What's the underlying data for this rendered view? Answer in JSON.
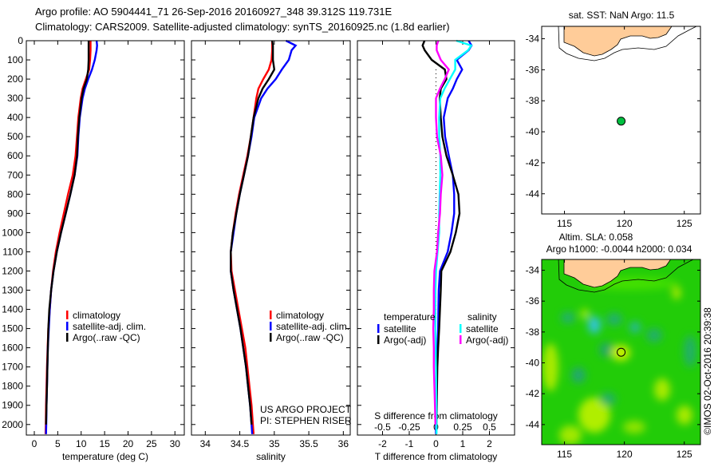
{
  "header": {
    "title_line1": "Argo profile: AO 5904441_71 26-Sep-2016 20160927_348 39.312S 119.731E",
    "title_line2": "Climatology: CARS2009. Satellite-adjusted climatology: synTS_20160925.nc (1.8d earlier)"
  },
  "credits": {
    "project": "US ARGO PROJECT",
    "pi": "PI: STEPHEN RISER",
    "timestamp": "©IMOS 02-Oct-2016 20:39:38"
  },
  "maps": {
    "sst_title": "sat. SST: NaN Argo: 11.5",
    "sla_title_line1": "Altim. SLA: 0.058",
    "sla_title_line2": "Argo h1000: -0.0044 h2000: 0.034",
    "lon_ticks": [
      "115",
      "120",
      "125"
    ],
    "lat_ticks": [
      "-34",
      "-36",
      "-38",
      "-40",
      "-42",
      "-44"
    ],
    "float_position": {
      "lon": 119.731,
      "lat": -39.312
    },
    "land_color": "#ffcc99",
    "float_color": "#00c040"
  },
  "chart_data": [
    {
      "type": "line",
      "id": "temperature",
      "xlabel": "temperature (deg C)",
      "ylabel": "",
      "xlim": [
        -1.7,
        32
      ],
      "ylim": [
        2055,
        0
      ],
      "xticks": [
        0,
        5,
        10,
        15,
        20,
        25,
        30
      ],
      "xtick_labels": [
        "0",
        "5",
        "10",
        "15",
        "20",
        "25",
        "30"
      ],
      "yticks": [
        0,
        100,
        200,
        300,
        400,
        500,
        600,
        700,
        800,
        900,
        1000,
        1100,
        1200,
        1300,
        1400,
        1500,
        1600,
        1700,
        1800,
        1900,
        2000
      ],
      "ytick_labels": [
        "0",
        "100",
        "200",
        "300",
        "400",
        "500",
        "600",
        "700",
        "800",
        "900",
        "1000",
        "1100",
        "1200",
        "1300",
        "1400",
        "1500",
        "1600",
        "1700",
        "1800",
        "1900",
        "2000"
      ],
      "legend_position": "center-left",
      "depth": [
        0,
        25,
        50,
        100,
        150,
        200,
        250,
        300,
        400,
        500,
        600,
        700,
        800,
        900,
        1000,
        1100,
        1200,
        1300,
        1400,
        1500,
        1600,
        1700,
        1800,
        1900,
        2000,
        2050
      ],
      "series": [
        {
          "name": "climatology",
          "color": "#ff0000",
          "values": [
            12.0,
            12.0,
            12.0,
            11.9,
            11.7,
            11.0,
            10.3,
            9.9,
            9.4,
            9.1,
            8.8,
            8.2,
            7.2,
            6.3,
            5.4,
            4.6,
            4.0,
            3.6,
            3.3,
            3.0,
            2.85,
            2.7,
            2.6,
            2.5,
            2.45,
            2.4
          ]
        },
        {
          "name": "satellite-adj. clim.",
          "color": "#0000ff",
          "values": [
            13.3,
            13.4,
            13.3,
            12.9,
            12.3,
            11.5,
            10.8,
            10.3,
            9.7,
            9.4,
            9.2,
            8.6,
            7.7,
            6.7,
            5.7,
            4.8,
            4.1,
            3.6,
            3.3,
            3.1,
            2.9,
            2.8,
            2.7,
            2.6,
            2.55,
            2.5
          ]
        },
        {
          "name": "Argo(..raw -QC)",
          "color": "#000000",
          "values": [
            11.6,
            11.6,
            11.6,
            11.6,
            11.5,
            11.2,
            10.5,
            10.1,
            9.6,
            9.3,
            9.1,
            8.6,
            7.7,
            6.7,
            5.7,
            4.8,
            4.1,
            3.6,
            3.2,
            3.0,
            2.9,
            2.8,
            2.7,
            2.6,
            2.5,
            null
          ]
        }
      ]
    },
    {
      "type": "line",
      "id": "salinity",
      "xlabel": "salinity",
      "xlim": [
        33.8,
        36.1
      ],
      "ylim": [
        2055,
        0
      ],
      "xticks": [
        34,
        34.5,
        35,
        35.5,
        36
      ],
      "xtick_labels": [
        "34",
        "34.5",
        "35",
        "35.5",
        "36"
      ],
      "yticks": [
        0,
        100,
        200,
        300,
        400,
        500,
        600,
        700,
        800,
        900,
        1000,
        1100,
        1200,
        1300,
        1400,
        1500,
        1600,
        1700,
        1800,
        1900,
        2000
      ],
      "legend_position": "center-right",
      "depth": [
        0,
        25,
        50,
        100,
        150,
        200,
        250,
        300,
        400,
        500,
        600,
        700,
        800,
        900,
        1000,
        1100,
        1200,
        1300,
        1400,
        1500,
        1600,
        1700,
        1800,
        1900,
        2000,
        2050
      ],
      "series": [
        {
          "name": "climatology",
          "color": "#ff0000",
          "values": [
            34.97,
            34.97,
            34.97,
            34.96,
            34.92,
            34.84,
            34.77,
            34.74,
            34.7,
            34.66,
            34.61,
            34.55,
            34.49,
            34.44,
            34.4,
            34.37,
            34.38,
            34.43,
            34.48,
            34.53,
            34.58,
            34.61,
            34.64,
            34.67,
            34.69,
            34.7
          ]
        },
        {
          "name": "satellite-adj. clim.",
          "color": "#0000ff",
          "values": [
            35.17,
            35.31,
            35.25,
            35.21,
            35.11,
            35.02,
            34.9,
            34.81,
            34.71,
            34.67,
            34.62,
            34.56,
            34.5,
            34.45,
            34.41,
            34.37,
            34.37,
            34.41,
            34.46,
            34.51,
            34.55,
            34.59,
            34.62,
            34.65,
            34.67,
            34.68
          ]
        },
        {
          "name": "Argo(..raw -QC)",
          "color": "#000000",
          "values": [
            34.97,
            34.98,
            34.98,
            34.98,
            35.0,
            34.92,
            34.83,
            34.77,
            34.7,
            34.66,
            34.62,
            34.56,
            34.5,
            34.45,
            34.4,
            34.37,
            34.37,
            34.41,
            34.46,
            34.51,
            34.55,
            34.59,
            34.62,
            34.65,
            34.67,
            null
          ]
        }
      ]
    },
    {
      "type": "line",
      "id": "difference",
      "xlabel": "T difference from climatology",
      "x2label": "S difference from climatology",
      "xlim": [
        -2.94,
        2.94
      ],
      "x2lim": [
        -0.735,
        0.735
      ],
      "ylim": [
        2055,
        0
      ],
      "xticks": [
        -2,
        -1,
        0,
        1,
        2
      ],
      "xtick_labels": [
        "-2",
        "-1",
        "0",
        "1",
        "2"
      ],
      "x2ticks": [
        -0.5,
        -0.25,
        0,
        0.25,
        0.5
      ],
      "x2tick_labels": [
        "-0.5",
        "-0.25",
        "0",
        "0.25",
        "0.5"
      ],
      "yticks": [
        0,
        100,
        200,
        300,
        400,
        500,
        600,
        700,
        800,
        900,
        1000,
        1100,
        1200,
        1300,
        1400,
        1500,
        1600,
        1700,
        1800,
        1900,
        2000
      ],
      "zero_line": true,
      "legend_groups": [
        "temperature",
        "salinity"
      ],
      "depth": [
        0,
        25,
        50,
        100,
        150,
        200,
        250,
        300,
        400,
        500,
        600,
        700,
        800,
        900,
        1000,
        1100,
        1200,
        1300,
        1400,
        1500,
        1600,
        1700,
        1800,
        1900,
        2000,
        2050
      ],
      "series": [
        {
          "name": "satellite",
          "group": "temperature",
          "axis": "T",
          "color": "#0000ff",
          "values": [
            1.22,
            1.33,
            1.22,
            0.78,
            0.98,
            0.78,
            0.63,
            0.44,
            0.29,
            0.34,
            0.48,
            0.63,
            0.68,
            0.68,
            0.58,
            0.44,
            0.15,
            0.1,
            0.09,
            0.08,
            0.05,
            0.03,
            0.02,
            0.01,
            0.0,
            0.0
          ]
        },
        {
          "name": "Argo(-adj)",
          "group": "temperature",
          "axis": "T",
          "color": "#000000",
          "values": [
            -0.43,
            -0.5,
            -0.42,
            -0.16,
            0.33,
            0.39,
            0.18,
            0.14,
            0.18,
            0.24,
            0.39,
            0.63,
            0.84,
            0.88,
            0.74,
            0.54,
            0.2,
            0.18,
            0.15,
            0.12,
            0.08,
            0.05,
            0.04,
            0.03,
            0.02,
            null
          ]
        },
        {
          "name": "satellite",
          "group": "salinity",
          "axis": "S",
          "color": "#00ffff",
          "values": [
            0.19,
            0.33,
            0.3,
            0.18,
            0.18,
            0.13,
            0.08,
            0.04,
            0.03,
            0.03,
            0.04,
            0.04,
            0.035,
            0.03,
            0.03,
            0.015,
            0.0,
            -0.005,
            -0.007,
            -0.005,
            -0.003,
            0.0,
            0.002,
            0.004,
            0.005,
            0.005
          ]
        },
        {
          "name": "Argo(-adj)",
          "group": "salinity",
          "axis": "S",
          "color": "#ff00ff",
          "values": [
            0.022,
            0.007,
            0.007,
            0.045,
            0.12,
            0.082,
            0.037,
            0.0,
            0.0,
            0.01,
            0.045,
            0.06,
            0.045,
            0.037,
            0.02,
            0.01,
            -0.015,
            -0.02,
            -0.02,
            -0.025,
            -0.02,
            -0.02,
            -0.015,
            -0.01,
            -0.005,
            null
          ]
        }
      ]
    }
  ]
}
